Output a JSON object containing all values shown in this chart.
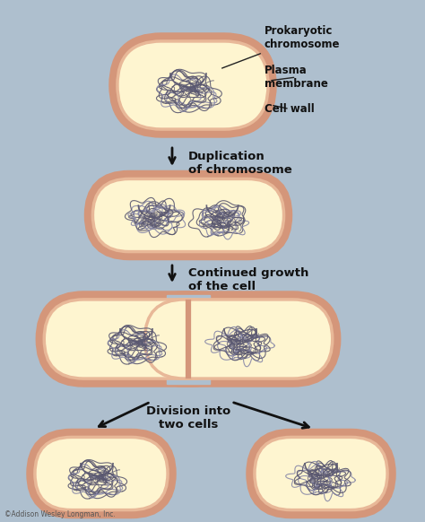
{
  "background_color": "#aebfce",
  "cell_fill": "#fef5d0",
  "cell_outer_color": "#d4967a",
  "cell_inner_color": "#e8b898",
  "chromosome_color": "#5a5870",
  "chromosome_light": "#8888a8",
  "arrow_color": "#111111",
  "text_color": "#111111",
  "bold_text_color": "#111111",
  "copyright_text": "©Addison Wesley Longman, Inc.",
  "label1": "Prokaryotic\nchromosome",
  "label2": "Plasma\nmembrane",
  "label3": "Cell wall",
  "step1_text": "Duplication\nof chromosome",
  "step2_text": "Continued growth\nof the cell",
  "step3_text": "Division into\ntwo cells",
  "fig_width": 4.74,
  "fig_height": 5.82,
  "dpi": 100
}
